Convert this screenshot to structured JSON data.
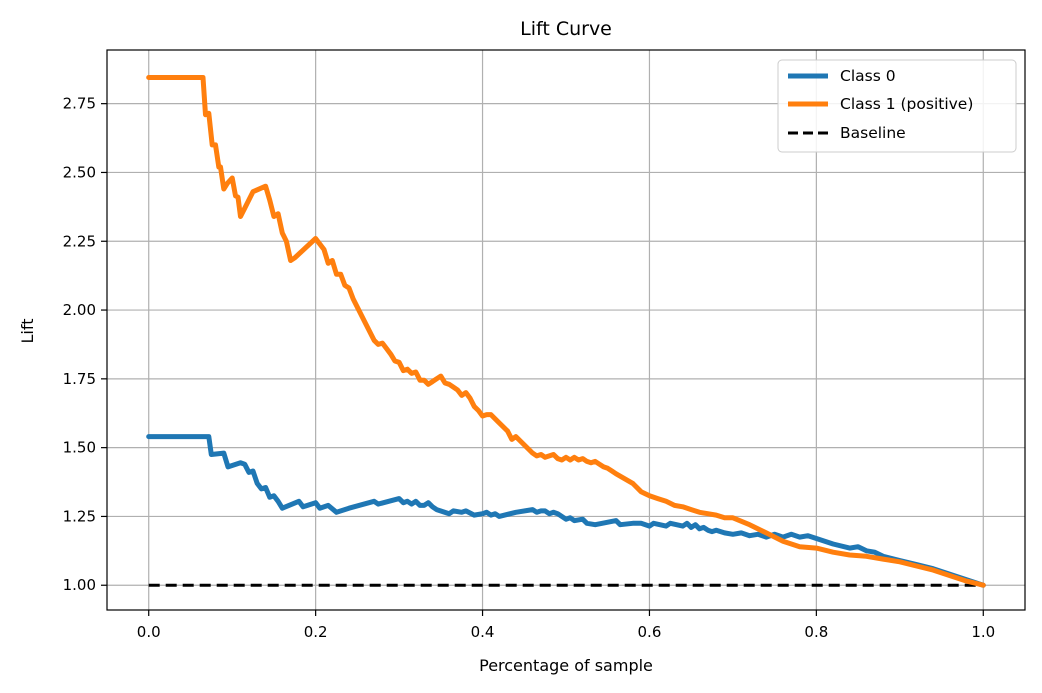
{
  "chart_data": {
    "type": "line",
    "title": "Lift Curve",
    "xlabel": "Percentage of sample",
    "ylabel": "Lift",
    "xlim": [
      -0.05,
      1.05
    ],
    "ylim": [
      0.91,
      2.945
    ],
    "xticks": [
      "0.0",
      "0.2",
      "0.4",
      "0.6",
      "0.8",
      "1.0"
    ],
    "xtick_values": [
      0.0,
      0.2,
      0.4,
      0.6,
      0.8,
      1.0
    ],
    "yticks": [
      "1.00",
      "1.25",
      "1.50",
      "1.75",
      "2.00",
      "2.25",
      "2.50",
      "2.75"
    ],
    "ytick_values": [
      1.0,
      1.25,
      1.5,
      1.75,
      2.0,
      2.25,
      2.5,
      2.75
    ],
    "grid": true,
    "legend_position": "top-right",
    "series": [
      {
        "name": "Class 0",
        "color": "#1f77b4",
        "style": "solid",
        "x": [
          0.0,
          0.072,
          0.075,
          0.09,
          0.095,
          0.11,
          0.115,
          0.12,
          0.125,
          0.13,
          0.135,
          0.14,
          0.145,
          0.15,
          0.155,
          0.16,
          0.18,
          0.185,
          0.2,
          0.205,
          0.215,
          0.225,
          0.24,
          0.27,
          0.275,
          0.3,
          0.305,
          0.31,
          0.315,
          0.32,
          0.325,
          0.33,
          0.335,
          0.34,
          0.345,
          0.36,
          0.365,
          0.375,
          0.38,
          0.39,
          0.4,
          0.405,
          0.41,
          0.415,
          0.42,
          0.44,
          0.46,
          0.465,
          0.47,
          0.475,
          0.48,
          0.485,
          0.49,
          0.5,
          0.505,
          0.51,
          0.52,
          0.525,
          0.535,
          0.56,
          0.565,
          0.58,
          0.59,
          0.6,
          0.605,
          0.62,
          0.625,
          0.64,
          0.645,
          0.65,
          0.655,
          0.66,
          0.665,
          0.67,
          0.675,
          0.68,
          0.69,
          0.7,
          0.71,
          0.72,
          0.73,
          0.74,
          0.75,
          0.76,
          0.77,
          0.78,
          0.79,
          0.8,
          0.82,
          0.84,
          0.85,
          0.86,
          0.87,
          0.88,
          0.9,
          0.92,
          0.94,
          0.96,
          0.98,
          1.0
        ],
        "y": [
          1.54,
          1.54,
          1.475,
          1.48,
          1.43,
          1.445,
          1.44,
          1.41,
          1.415,
          1.37,
          1.35,
          1.355,
          1.32,
          1.325,
          1.305,
          1.28,
          1.305,
          1.285,
          1.3,
          1.28,
          1.29,
          1.265,
          1.28,
          1.305,
          1.295,
          1.315,
          1.3,
          1.305,
          1.295,
          1.305,
          1.29,
          1.29,
          1.3,
          1.285,
          1.275,
          1.26,
          1.27,
          1.265,
          1.27,
          1.255,
          1.26,
          1.265,
          1.255,
          1.26,
          1.25,
          1.265,
          1.275,
          1.265,
          1.27,
          1.27,
          1.26,
          1.265,
          1.26,
          1.24,
          1.245,
          1.235,
          1.24,
          1.225,
          1.22,
          1.235,
          1.22,
          1.225,
          1.225,
          1.215,
          1.225,
          1.215,
          1.225,
          1.215,
          1.225,
          1.21,
          1.22,
          1.205,
          1.21,
          1.2,
          1.195,
          1.2,
          1.19,
          1.185,
          1.19,
          1.18,
          1.185,
          1.175,
          1.185,
          1.175,
          1.185,
          1.175,
          1.18,
          1.17,
          1.15,
          1.135,
          1.14,
          1.125,
          1.12,
          1.105,
          1.09,
          1.075,
          1.06,
          1.04,
          1.02,
          1.0
        ]
      },
      {
        "name": "Class 1 (positive)",
        "color": "#ff7f0e",
        "style": "solid",
        "x": [
          0.0,
          0.065,
          0.068,
          0.072,
          0.076,
          0.08,
          0.084,
          0.086,
          0.09,
          0.094,
          0.1,
          0.104,
          0.107,
          0.11,
          0.115,
          0.125,
          0.14,
          0.145,
          0.15,
          0.155,
          0.16,
          0.165,
          0.17,
          0.175,
          0.2,
          0.205,
          0.21,
          0.215,
          0.22,
          0.225,
          0.23,
          0.235,
          0.24,
          0.245,
          0.26,
          0.27,
          0.275,
          0.28,
          0.285,
          0.29,
          0.295,
          0.3,
          0.305,
          0.31,
          0.315,
          0.32,
          0.325,
          0.33,
          0.335,
          0.34,
          0.345,
          0.35,
          0.355,
          0.36,
          0.365,
          0.37,
          0.375,
          0.38,
          0.385,
          0.39,
          0.395,
          0.4,
          0.405,
          0.41,
          0.42,
          0.43,
          0.435,
          0.44,
          0.46,
          0.465,
          0.47,
          0.475,
          0.48,
          0.485,
          0.49,
          0.495,
          0.5,
          0.505,
          0.51,
          0.515,
          0.52,
          0.525,
          0.53,
          0.535,
          0.54,
          0.545,
          0.55,
          0.555,
          0.56,
          0.58,
          0.59,
          0.6,
          0.61,
          0.62,
          0.63,
          0.64,
          0.65,
          0.66,
          0.67,
          0.68,
          0.69,
          0.7,
          0.72,
          0.74,
          0.76,
          0.78,
          0.8,
          0.82,
          0.84,
          0.86,
          0.88,
          0.9,
          0.92,
          0.94,
          0.96,
          0.98,
          1.0
        ],
        "y": [
          2.845,
          2.845,
          2.71,
          2.715,
          2.6,
          2.6,
          2.52,
          2.52,
          2.44,
          2.46,
          2.48,
          2.415,
          2.41,
          2.34,
          2.37,
          2.43,
          2.45,
          2.4,
          2.34,
          2.35,
          2.28,
          2.25,
          2.18,
          2.19,
          2.26,
          2.24,
          2.22,
          2.17,
          2.18,
          2.13,
          2.13,
          2.09,
          2.08,
          2.04,
          1.95,
          1.89,
          1.875,
          1.88,
          1.86,
          1.84,
          1.815,
          1.81,
          1.78,
          1.785,
          1.77,
          1.775,
          1.745,
          1.745,
          1.73,
          1.74,
          1.75,
          1.76,
          1.735,
          1.73,
          1.72,
          1.71,
          1.69,
          1.7,
          1.68,
          1.65,
          1.635,
          1.615,
          1.62,
          1.62,
          1.59,
          1.56,
          1.53,
          1.54,
          1.48,
          1.47,
          1.475,
          1.465,
          1.47,
          1.475,
          1.46,
          1.455,
          1.465,
          1.455,
          1.465,
          1.455,
          1.46,
          1.45,
          1.445,
          1.45,
          1.44,
          1.43,
          1.425,
          1.415,
          1.405,
          1.37,
          1.34,
          1.325,
          1.315,
          1.305,
          1.29,
          1.285,
          1.275,
          1.265,
          1.26,
          1.255,
          1.245,
          1.245,
          1.22,
          1.19,
          1.16,
          1.14,
          1.135,
          1.12,
          1.11,
          1.105,
          1.095,
          1.085,
          1.07,
          1.055,
          1.035,
          1.015,
          1.0
        ]
      },
      {
        "name": "Baseline",
        "color": "#000000",
        "style": "dashed",
        "x": [
          0.0,
          1.0
        ],
        "y": [
          1.0,
          1.0
        ]
      }
    ]
  }
}
